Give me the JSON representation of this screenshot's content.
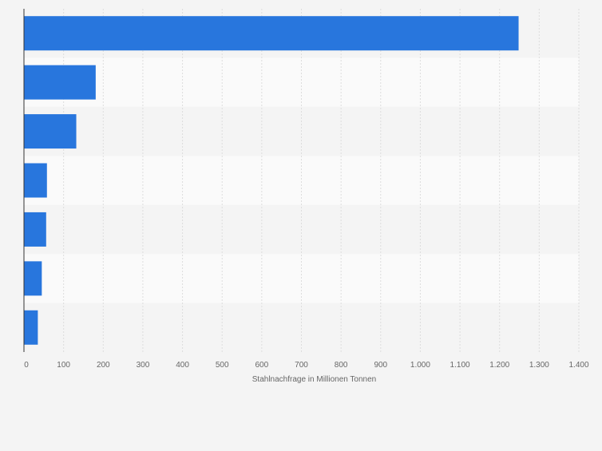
{
  "chart_data": {
    "type": "bar",
    "orientation": "horizontal",
    "categories": [
      "",
      "",
      "",
      "",
      "",
      "",
      ""
    ],
    "values": [
      1248,
      181,
      132,
      58,
      56,
      45,
      35
    ],
    "xlabel": "Stahlnachfrage in Millionen Tonnen",
    "ylabel": "",
    "xlim": [
      0,
      1400
    ],
    "xticks": [
      0,
      100,
      200,
      300,
      400,
      500,
      600,
      700,
      800,
      900,
      1000,
      1100,
      1200,
      1300,
      1400
    ],
    "xtick_labels": [
      "0",
      "100",
      "200",
      "300",
      "400",
      "500",
      "600",
      "700",
      "800",
      "900",
      "1.000",
      "1.100",
      "1.200",
      "1.300",
      "1.400"
    ],
    "grid": "vertical",
    "legend": "none",
    "colors": {
      "bar": "#2876dd",
      "band_dark": "#f4f4f4",
      "band_light": "#fafafa",
      "grid": "#dddddd",
      "axis": "#333333"
    }
  }
}
